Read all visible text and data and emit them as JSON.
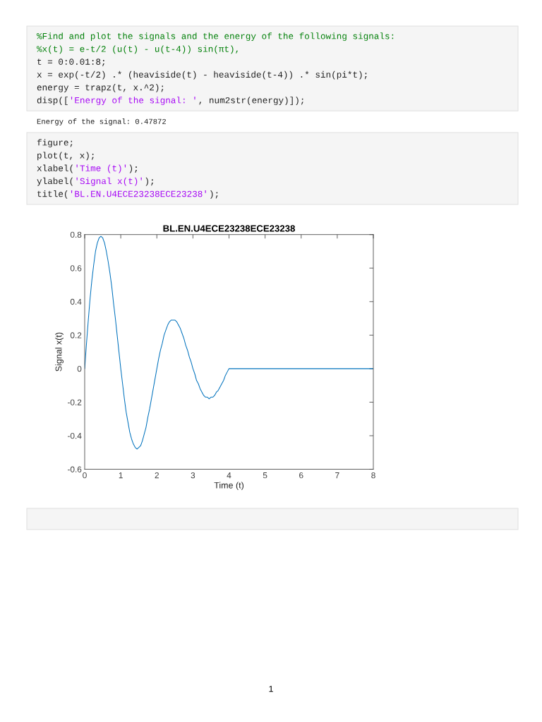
{
  "chart_data": {
    "type": "line",
    "title": "BL.EN.U4ECE23238ECE23238",
    "xlabel": "Time (t)",
    "ylabel": "Signal x(t)",
    "x": [
      0,
      0.05,
      0.1,
      0.15,
      0.2,
      0.25,
      0.3,
      0.35,
      0.4,
      0.45,
      0.5,
      0.55,
      0.6,
      0.65,
      0.7,
      0.75,
      0.8,
      0.85,
      0.9,
      0.95,
      1.0,
      1.05,
      1.1,
      1.15,
      1.2,
      1.25,
      1.3,
      1.35,
      1.4,
      1.45,
      1.5,
      1.55,
      1.6,
      1.65,
      1.7,
      1.75,
      1.8,
      1.85,
      1.9,
      1.95,
      2.0,
      2.05,
      2.1,
      2.15,
      2.2,
      2.25,
      2.3,
      2.35,
      2.4,
      2.45,
      2.5,
      2.55,
      2.6,
      2.65,
      2.7,
      2.75,
      2.8,
      2.85,
      2.9,
      2.95,
      3.0,
      3.05,
      3.1,
      3.15,
      3.2,
      3.25,
      3.3,
      3.35,
      3.4,
      3.45,
      3.5,
      3.55,
      3.6,
      3.65,
      3.7,
      3.75,
      3.8,
      3.85,
      3.9,
      3.95,
      4.0,
      8.0
    ],
    "series": [
      {
        "color": "#0072bd",
        "values": [
          0,
          0.15,
          0.29,
          0.42,
          0.53,
          0.62,
          0.7,
          0.75,
          0.78,
          0.79,
          0.78,
          0.75,
          0.7,
          0.64,
          0.57,
          0.49,
          0.39,
          0.3,
          0.2,
          0.1,
          0,
          -0.09,
          -0.18,
          -0.26,
          -0.32,
          -0.38,
          -0.42,
          -0.45,
          -0.47,
          -0.48,
          -0.47,
          -0.46,
          -0.43,
          -0.39,
          -0.35,
          -0.29,
          -0.24,
          -0.18,
          -0.12,
          -0.06,
          0,
          0.06,
          0.11,
          0.15,
          0.2,
          0.23,
          0.26,
          0.28,
          0.29,
          0.29,
          0.29,
          0.28,
          0.26,
          0.24,
          0.21,
          0.18,
          0.14,
          0.11,
          0.07,
          0.04,
          0,
          -0.03,
          -0.07,
          -0.09,
          -0.12,
          -0.14,
          -0.16,
          -0.17,
          -0.17,
          -0.18,
          -0.17,
          -0.17,
          -0.16,
          -0.14,
          -0.13,
          -0.11,
          -0.09,
          -0.07,
          -0.04,
          -0.02,
          0,
          0
        ]
      }
    ],
    "xlim": [
      0,
      8
    ],
    "ylim": [
      -0.6,
      0.8
    ],
    "xticks": [
      0,
      1,
      2,
      3,
      4,
      5,
      6,
      7,
      8
    ],
    "yticks": [
      -0.6,
      -0.4,
      -0.2,
      0,
      0.2,
      0.4,
      0.6,
      0.8
    ],
    "line_style": "solid",
    "annotations": [
      "%Find and plot the signals and the energy of the following signals:\n%x(t) = e-t/2 (u(t) - u(t-4)) sin(πt),\nt = 0:0.01:8;\nx = exp(-t/2) .* (heaviside(t) - heaviside(t-4)) .* sin(pi*t);\nenergy = trapz(t, x.^2);\ndisp(['Energy of the signal: ', num2str(energy)]);",
      "Energy of the signal: 0.47872",
      "figure;\nplot(t, x);\nxlabel('Time (t)');\nylabel('Signal x(t)');\ntitle('BL.EN.U4ECE23238ECE23238');",
      "1"
    ]
  }
}
